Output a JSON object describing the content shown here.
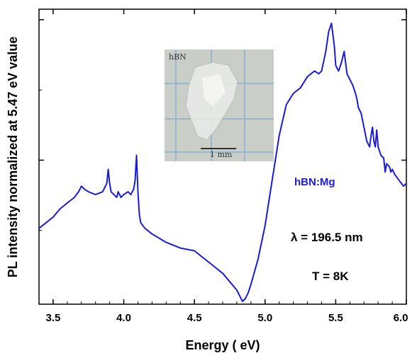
{
  "chart_data": {
    "type": "line",
    "xlabel": "Energy ( eV)",
    "ylabel": "PL intensity normalized at 5.47 eV value",
    "xlim": [
      3.4,
      6.0
    ],
    "ylim": [
      0,
      1.05
    ],
    "x_ticks": [
      "3.5",
      "4.0",
      "4.5",
      "5.0",
      "5.5",
      "6.0"
    ],
    "y_ticks_labeled": false,
    "grid": false,
    "legend": "none",
    "series": [
      {
        "name": "hBN:Mg",
        "color": "#1a1adc",
        "x": [
          3.4,
          3.45,
          3.5,
          3.55,
          3.6,
          3.65,
          3.68,
          3.7,
          3.72,
          3.75,
          3.8,
          3.85,
          3.88,
          3.89,
          3.9,
          3.91,
          3.93,
          3.95,
          3.96,
          3.98,
          4.0,
          4.03,
          4.05,
          4.07,
          4.08,
          4.09,
          4.1,
          4.11,
          4.12,
          4.15,
          4.2,
          4.3,
          4.4,
          4.5,
          4.55,
          4.6,
          4.65,
          4.7,
          4.75,
          4.8,
          4.82,
          4.84,
          4.86,
          4.88,
          4.9,
          4.95,
          5.0,
          5.05,
          5.1,
          5.15,
          5.2,
          5.25,
          5.3,
          5.35,
          5.38,
          5.4,
          5.43,
          5.45,
          5.47,
          5.49,
          5.5,
          5.52,
          5.54,
          5.56,
          5.57,
          5.58,
          5.6,
          5.62,
          5.64,
          5.65,
          5.66,
          5.68,
          5.7,
          5.72,
          5.74,
          5.75,
          5.76,
          5.77,
          5.78,
          5.79,
          5.8,
          5.82,
          5.84,
          5.85,
          5.86,
          5.88,
          5.89,
          5.9,
          5.92,
          5.95,
          5.98,
          6.0
        ],
        "y": [
          0.27,
          0.29,
          0.31,
          0.34,
          0.36,
          0.38,
          0.4,
          0.42,
          0.41,
          0.4,
          0.39,
          0.4,
          0.43,
          0.48,
          0.43,
          0.4,
          0.39,
          0.38,
          0.4,
          0.38,
          0.39,
          0.4,
          0.39,
          0.41,
          0.44,
          0.53,
          0.4,
          0.32,
          0.29,
          0.27,
          0.25,
          0.22,
          0.2,
          0.19,
          0.17,
          0.15,
          0.13,
          0.11,
          0.08,
          0.05,
          0.03,
          0.01,
          0.02,
          0.04,
          0.07,
          0.16,
          0.28,
          0.44,
          0.6,
          0.71,
          0.75,
          0.77,
          0.81,
          0.83,
          0.82,
          0.83,
          0.9,
          0.97,
          1.0,
          0.92,
          0.85,
          0.83,
          0.86,
          0.9,
          0.86,
          0.82,
          0.8,
          0.78,
          0.75,
          0.73,
          0.7,
          0.68,
          0.63,
          0.58,
          0.56,
          0.6,
          0.63,
          0.58,
          0.56,
          0.62,
          0.56,
          0.53,
          0.52,
          0.47,
          0.5,
          0.49,
          0.47,
          0.48,
          0.46,
          0.44,
          0.42,
          0.43
        ]
      }
    ],
    "annotations": [
      "λ = 196.5 nm",
      "T = 8K"
    ],
    "inset": {
      "label": "hBN",
      "scale_bar_label": "1 mm"
    }
  }
}
